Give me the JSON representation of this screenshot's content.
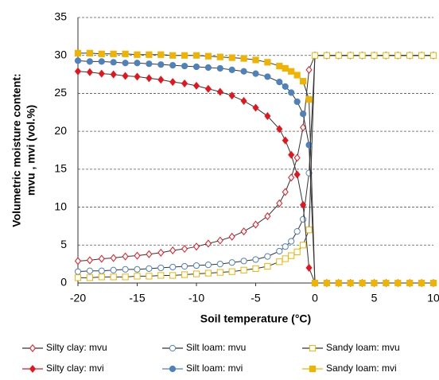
{
  "chart_data": {
    "type": "line",
    "xlabel": "Soil temperature (°C)",
    "ylabel": [
      "Volumetric moisture content:",
      "mvu , mvi  (vol.%)"
    ],
    "x": [
      -20,
      -19,
      -18,
      -17,
      -16,
      -15,
      -14,
      -13,
      -12,
      -11,
      -10,
      -9,
      -8,
      -7,
      -6,
      -5,
      -4,
      -3,
      -2.5,
      -2,
      -1.5,
      -1,
      -0.5,
      0,
      1,
      2,
      3,
      4,
      5,
      6,
      7,
      8,
      9,
      10
    ],
    "xlim": [
      -20,
      10
    ],
    "xticks": [
      -20,
      -15,
      -10,
      -5,
      0,
      5,
      10
    ],
    "ylim": [
      0,
      35
    ],
    "yticks": [
      0,
      5,
      10,
      15,
      20,
      25,
      30,
      35
    ],
    "grid": true,
    "line_color": "#333333",
    "legend": "bottom",
    "series": [
      {
        "name": "Silty clay: mvu",
        "color": "#e8141b",
        "marker": "diamond",
        "filled": false,
        "values": [
          2.9,
          3.0,
          3.2,
          3.3,
          3.5,
          3.6,
          3.8,
          4.0,
          4.3,
          4.5,
          4.8,
          5.2,
          5.6,
          6.1,
          6.8,
          7.7,
          8.8,
          10.5,
          12.0,
          13.9,
          16.5,
          20.5,
          28.1,
          30,
          30,
          30,
          30,
          30,
          30,
          30,
          30,
          30,
          30,
          30
        ]
      },
      {
        "name": "Silt loam: mvu",
        "color": "#4f81bd",
        "marker": "circle",
        "filled": false,
        "values": [
          1.5,
          1.6,
          1.6,
          1.7,
          1.8,
          1.8,
          1.9,
          2.0,
          2.1,
          2.2,
          2.3,
          2.4,
          2.5,
          2.7,
          2.9,
          3.1,
          3.5,
          4.2,
          4.8,
          5.5,
          6.8,
          8.4,
          14.5,
          30,
          30,
          30,
          30,
          30,
          30,
          30,
          30,
          30,
          30,
          30
        ]
      },
      {
        "name": "Sandy loam: mvu",
        "color": "#f0b400",
        "marker": "square",
        "filled": false,
        "values": [
          0.7,
          0.7,
          0.8,
          0.8,
          0.8,
          0.9,
          0.9,
          1.0,
          1.0,
          1.1,
          1.2,
          1.3,
          1.4,
          1.5,
          1.7,
          1.9,
          2.2,
          2.8,
          3.2,
          3.6,
          4.1,
          5.0,
          7.0,
          30,
          30,
          30,
          30,
          30,
          30,
          30,
          30,
          30,
          30,
          30
        ]
      },
      {
        "name": "Silty clay: mvi",
        "color": "#e8141b",
        "marker": "diamond",
        "filled": true,
        "values": [
          27.9,
          27.8,
          27.6,
          27.5,
          27.3,
          27.2,
          27.0,
          26.8,
          26.5,
          26.3,
          26.0,
          25.6,
          25.2,
          24.7,
          24.0,
          23.1,
          22.0,
          20.3,
          18.8,
          16.9,
          14.3,
          10.3,
          2.0,
          0,
          0,
          0,
          0,
          0,
          0,
          0,
          0,
          0,
          0,
          0
        ]
      },
      {
        "name": "Silt loam: mvi",
        "color": "#4f81bd",
        "marker": "circle",
        "filled": true,
        "values": [
          29.3,
          29.2,
          29.2,
          29.1,
          29.0,
          29.0,
          28.9,
          28.8,
          28.7,
          28.6,
          28.5,
          28.4,
          28.3,
          28.1,
          27.9,
          27.6,
          27.2,
          26.5,
          25.9,
          25.1,
          23.9,
          22.3,
          18.2,
          0,
          0,
          0,
          0,
          0,
          0,
          0,
          0,
          0,
          0,
          0
        ]
      },
      {
        "name": "Sandy loam: mvi",
        "color": "#f0b400",
        "marker": "square",
        "filled": true,
        "values": [
          30.3,
          30.3,
          30.2,
          30.2,
          30.2,
          30.1,
          30.1,
          30.1,
          30.0,
          30.0,
          30.0,
          29.9,
          29.8,
          29.7,
          29.6,
          29.4,
          29.1,
          28.6,
          28.3,
          27.9,
          27.4,
          26.6,
          24.2,
          0,
          0,
          0,
          0,
          0,
          0,
          0,
          0,
          0,
          0,
          0
        ]
      }
    ]
  }
}
